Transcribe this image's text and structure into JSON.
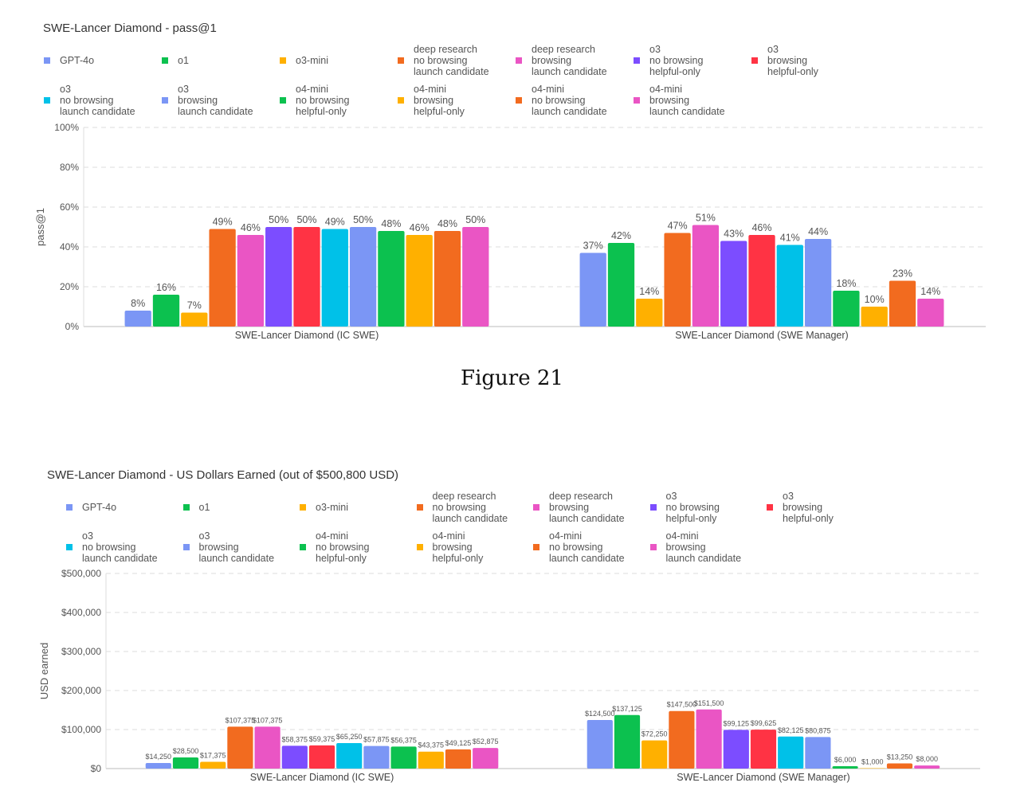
{
  "caption": "Figure 21",
  "legend": [
    {
      "label": "GPT-4o",
      "color": "#7b96f5"
    },
    {
      "label": "o1",
      "color": "#0cc14f"
    },
    {
      "label": "o3-mini",
      "color": "#ffb000"
    },
    {
      "label": "deep research\nno browsing\nlaunch candidate",
      "color": "#f26b1f"
    },
    {
      "label": "deep research\nbrowsing\nlaunch candidate",
      "color": "#ea55c4"
    },
    {
      "label": "o3\nno browsing\nhelpful-only",
      "color": "#7c4dff"
    },
    {
      "label": "o3\nbrowsing\nhelpful-only",
      "color": "#ff3344"
    },
    {
      "label": "o3\nno browsing\nlaunch candidate",
      "color": "#00c1e8"
    },
    {
      "label": "o3\nbrowsing\nlaunch candidate",
      "color": "#7b96f5"
    },
    {
      "label": "o4-mini\nno browsing\nhelpful-only",
      "color": "#0cc14f"
    },
    {
      "label": "o4-mini\nbrowsing\nhelpful-only",
      "color": "#ffb000"
    },
    {
      "label": "o4-mini\nno browsing\nlaunch candidate",
      "color": "#f26b1f"
    },
    {
      "label": "o4-mini\nbrowsing\nlaunch candidate",
      "color": "#ea55c4"
    }
  ],
  "chart_data": [
    {
      "type": "bar",
      "title": "SWE-Lancer Diamond - pass@1",
      "ylabel": "pass@1",
      "xlabel": "",
      "ylim": [
        0,
        100
      ],
      "yticks": [
        0,
        20,
        40,
        60,
        80,
        100
      ],
      "ytick_labels": [
        "0%",
        "20%",
        "40%",
        "60%",
        "80%",
        "100%"
      ],
      "grid": true,
      "legend_placement": "top",
      "categories": [
        "SWE-Lancer Diamond (IC SWE)",
        "SWE-Lancer Diamond (SWE Manager)"
      ],
      "values": [
        [
          8,
          16,
          7,
          49,
          46,
          50,
          50,
          49,
          50,
          48,
          46,
          48,
          50
        ],
        [
          37,
          42,
          14,
          47,
          51,
          43,
          46,
          41,
          44,
          18,
          10,
          23,
          14
        ]
      ],
      "data_labels": [
        [
          "8%",
          "16%",
          "7%",
          "49%",
          "46%",
          "50%",
          "50%",
          "49%",
          "50%",
          "48%",
          "46%",
          "48%",
          "50%"
        ],
        [
          "37%",
          "42%",
          "14%",
          "47%",
          "51%",
          "43%",
          "46%",
          "41%",
          "44%",
          "18%",
          "10%",
          "23%",
          "14%"
        ]
      ]
    },
    {
      "type": "bar",
      "title": "SWE-Lancer Diamond - US Dollars Earned (out of $500,800 USD)",
      "ylabel": "USD earned",
      "xlabel": "",
      "ylim": [
        0,
        500000
      ],
      "yticks": [
        0,
        100000,
        200000,
        300000,
        400000,
        500000
      ],
      "ytick_labels": [
        "$0",
        "$100,000",
        "$200,000",
        "$300,000",
        "$400,000",
        "$500,000"
      ],
      "grid": true,
      "legend_placement": "top",
      "categories": [
        "SWE-Lancer Diamond (IC SWE)",
        "SWE-Lancer Diamond (SWE Manager)"
      ],
      "values": [
        [
          14250,
          28500,
          17375,
          107375,
          107375,
          58375,
          59375,
          65250,
          57875,
          56375,
          43375,
          49125,
          52875
        ],
        [
          124500,
          137125,
          72250,
          147500,
          151500,
          99125,
          99625,
          82125,
          80875,
          6000,
          1000,
          13250,
          8000
        ]
      ],
      "data_labels": [
        [
          "$14,250",
          "$28,500",
          "$17,375",
          "$107,375",
          "$107,375",
          "$58,375",
          "$59,375",
          "$65,250",
          "$57,875",
          "$56,375",
          "$43,375",
          "$49,125",
          "$52,875"
        ],
        [
          "$124,500",
          "$137,125",
          "$72,250",
          "$147,500",
          "$151,500",
          "$99,125",
          "$99,625",
          "$82,125",
          "$80,875",
          "$6,000",
          "$1,000",
          "$13,250",
          "$8,000"
        ]
      ]
    }
  ]
}
